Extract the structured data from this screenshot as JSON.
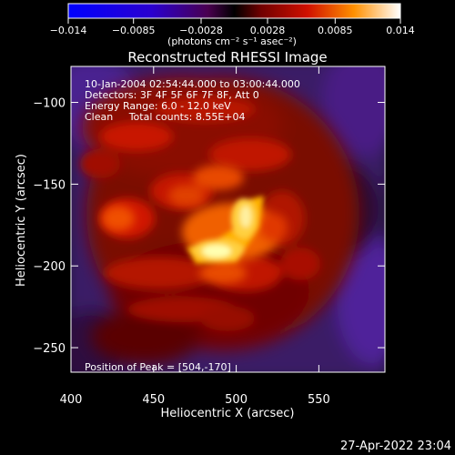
{
  "chart_data": {
    "type": "heatmap",
    "title": "Reconstructed RHESSI Image",
    "xlabel": "Heliocentric X (arcsec)",
    "ylabel": "Heliocentric Y (arcsec)",
    "xlim": [
      400,
      590
    ],
    "ylim": [
      -265,
      -78
    ],
    "xticks": [
      "400",
      "450",
      "500",
      "550"
    ],
    "yticks": [
      "-100",
      "-150",
      "-200",
      "-250"
    ],
    "peak": {
      "x": 504,
      "y": -170
    },
    "colorbar": {
      "range": [
        -0.014,
        0.014
      ],
      "ticks": [
        "-0.014",
        "-0.0085",
        "-0.0028",
        "0.0028",
        "0.0085",
        "0.014"
      ],
      "unit_label": "(photons cm⁻² s⁻¹ asec⁻²)"
    },
    "info_lines": [
      "10-Jan-2004 02:54:44.000 to 03:00:44.000",
      "Detectors: 3F 4F 5F 6F 7F 8F, Att 0",
      "Energy Range: 6.0 - 12.0 keV",
      "Clean     Total counts: 8.55E+04"
    ],
    "peak_label": "Position of Peak = [504,-170]",
    "grid": false
  },
  "footer": {
    "timestamp": "27-Apr-2022 23:04"
  },
  "colors": {
    "background": "#000000",
    "text": "#ffffff",
    "cmap_low": "#0000ff",
    "cmap_high": "#ffffff"
  }
}
